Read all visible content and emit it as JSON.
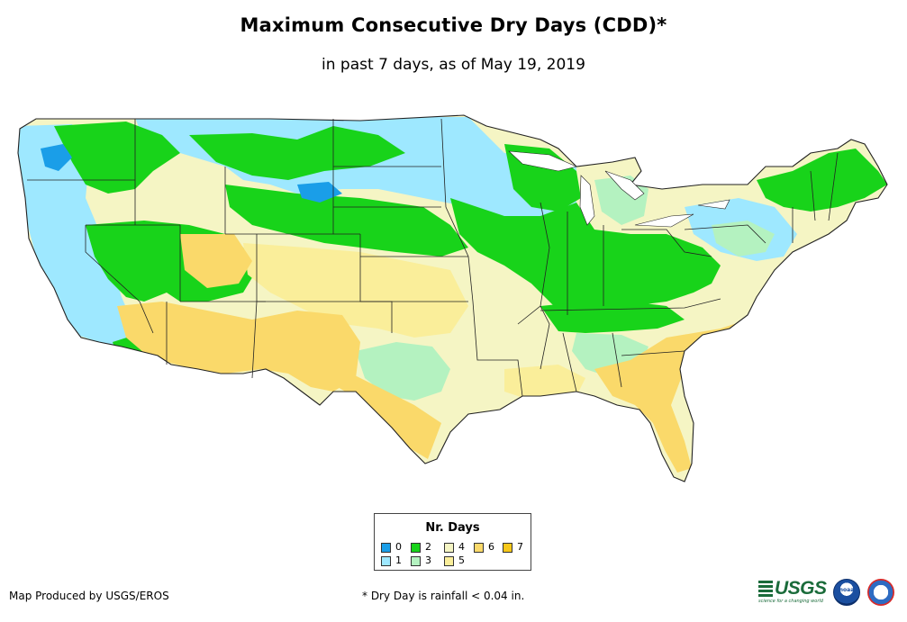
{
  "title": "Maximum Consecutive Dry Days (CDD)*",
  "subtitle": "in past 7 days, as of May 19, 2019",
  "legend": {
    "title": "Nr. Days",
    "items": [
      {
        "label": "0",
        "color": "#1a9ee8"
      },
      {
        "label": "1",
        "color": "#9ee8ff"
      },
      {
        "label": "2",
        "color": "#18d31a"
      },
      {
        "label": "3",
        "color": "#b4f2c0"
      },
      {
        "label": "4",
        "color": "#f5f5c4"
      },
      {
        "label": "5",
        "color": "#faee9a"
      },
      {
        "label": "6",
        "color": "#fad96a"
      },
      {
        "label": "7",
        "color": "#f7c81a"
      }
    ]
  },
  "footer": {
    "credit": "Map Produced by USGS/EROS",
    "note": "* Dry Day is rainfall < 0.04 in."
  },
  "logos": {
    "usgs_word": "USGS",
    "usgs_tagline": "science for a changing world",
    "noaa_word": "noaa"
  }
}
